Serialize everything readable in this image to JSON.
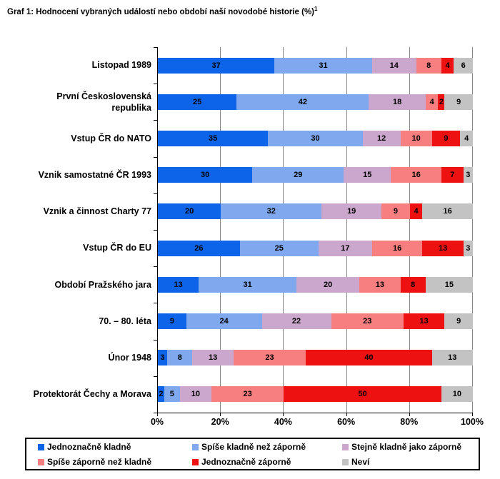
{
  "title": {
    "text": "Graf 1: Hodnocení vybraných událostí nebo období naší novodobé historie (%)",
    "superscript": "1"
  },
  "chart_data": {
    "type": "bar",
    "orientation": "horizontal",
    "stacked": true,
    "values_unit": "%",
    "title": "Graf 1: Hodnocení vybraných událostí nebo období naší novodobé historie (%)",
    "categories": [
      "Listopad 1989",
      "První Československá republika",
      "Vstup ČR do NATO",
      "Vznik samostatné ČR 1993",
      "Vznik a činnost Charty 77",
      "Vstup ČR do EU",
      "Období Pražského jara",
      "70. – 80. léta",
      "Únor 1948",
      "Protektorát Čechy a Morava"
    ],
    "series": [
      {
        "name": "Jednoznačně kladně",
        "color": "#0d64e8",
        "values": [
          37,
          25,
          35,
          30,
          20,
          26,
          13,
          9,
          3,
          2
        ]
      },
      {
        "name": "Spíše kladně než záporně",
        "color": "#7fa8ef",
        "values": [
          31,
          42,
          30,
          29,
          32,
          25,
          31,
          24,
          8,
          5
        ]
      },
      {
        "name": "Stejně kladně jako záporně",
        "color": "#cba6cd",
        "values": [
          14,
          18,
          12,
          15,
          19,
          17,
          20,
          22,
          13,
          10
        ]
      },
      {
        "name": "Spíše záporně než kladně",
        "color": "#f87f7f",
        "values": [
          8,
          4,
          10,
          16,
          9,
          16,
          13,
          23,
          23,
          23
        ]
      },
      {
        "name": "Jednoznačně záporně",
        "color": "#ee1111",
        "values": [
          4,
          2,
          9,
          7,
          4,
          13,
          8,
          13,
          40,
          50
        ]
      },
      {
        "name": "Neví",
        "color": "#c3c3c3",
        "values": [
          6,
          9,
          4,
          3,
          16,
          3,
          15,
          9,
          13,
          10
        ]
      }
    ],
    "x_axis": {
      "min": 0,
      "max": 100,
      "grid": true,
      "ticks": [
        {
          "label": "0%",
          "value": 0
        },
        {
          "label": "20%",
          "value": 20
        },
        {
          "label": "40%",
          "value": 40
        },
        {
          "label": "60%",
          "value": 60
        },
        {
          "label": "80%",
          "value": 80
        },
        {
          "label": "100%",
          "value": 100
        }
      ]
    },
    "legend": {
      "position": "bottom",
      "columns": 3
    }
  },
  "colors": {
    "axis": "#000000",
    "gridline": "#878787",
    "value_text": "#000000",
    "legend_border": "#000000"
  }
}
